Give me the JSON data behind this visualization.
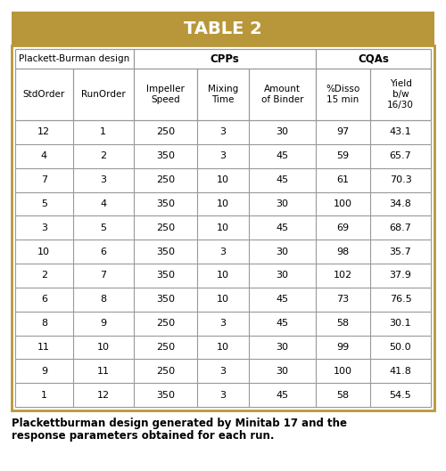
{
  "title": "TABLE 2",
  "title_bg_color": "#b8973a",
  "title_text_color": "#ffffff",
  "outer_border_color": "#b8973a",
  "cell_border_color": "#999999",
  "header_group1": "Plackett-Burman design",
  "header_group2": "CPPs",
  "header_group3": "CQAs",
  "col_headers": [
    "StdOrder",
    "RunOrder",
    "Impeller\nSpeed",
    "Mixing\nTime",
    "Amount\nof Binder",
    "%Disso\n15 min",
    "Yield\nb/w\n16/30"
  ],
  "rows": [
    [
      12,
      1,
      250,
      3,
      30,
      97,
      "43.1"
    ],
    [
      4,
      2,
      350,
      3,
      45,
      59,
      "65.7"
    ],
    [
      7,
      3,
      250,
      10,
      45,
      61,
      "70.3"
    ],
    [
      5,
      4,
      350,
      10,
      30,
      100,
      "34.8"
    ],
    [
      3,
      5,
      250,
      10,
      45,
      69,
      "68.7"
    ],
    [
      10,
      6,
      350,
      3,
      30,
      98,
      "35.7"
    ],
    [
      2,
      7,
      350,
      10,
      30,
      102,
      "37.9"
    ],
    [
      6,
      8,
      350,
      10,
      45,
      73,
      "76.5"
    ],
    [
      8,
      9,
      250,
      3,
      45,
      58,
      "30.1"
    ],
    [
      11,
      10,
      250,
      10,
      30,
      99,
      "50.0"
    ],
    [
      9,
      11,
      250,
      3,
      30,
      100,
      "41.8"
    ],
    [
      1,
      12,
      350,
      3,
      45,
      58,
      "54.5"
    ]
  ],
  "caption_line1": "Plackettburman design generated by Minitab 17 and the",
  "caption_line2": "response parameters obtained for each run.",
  "bg_color": "#ffffff"
}
